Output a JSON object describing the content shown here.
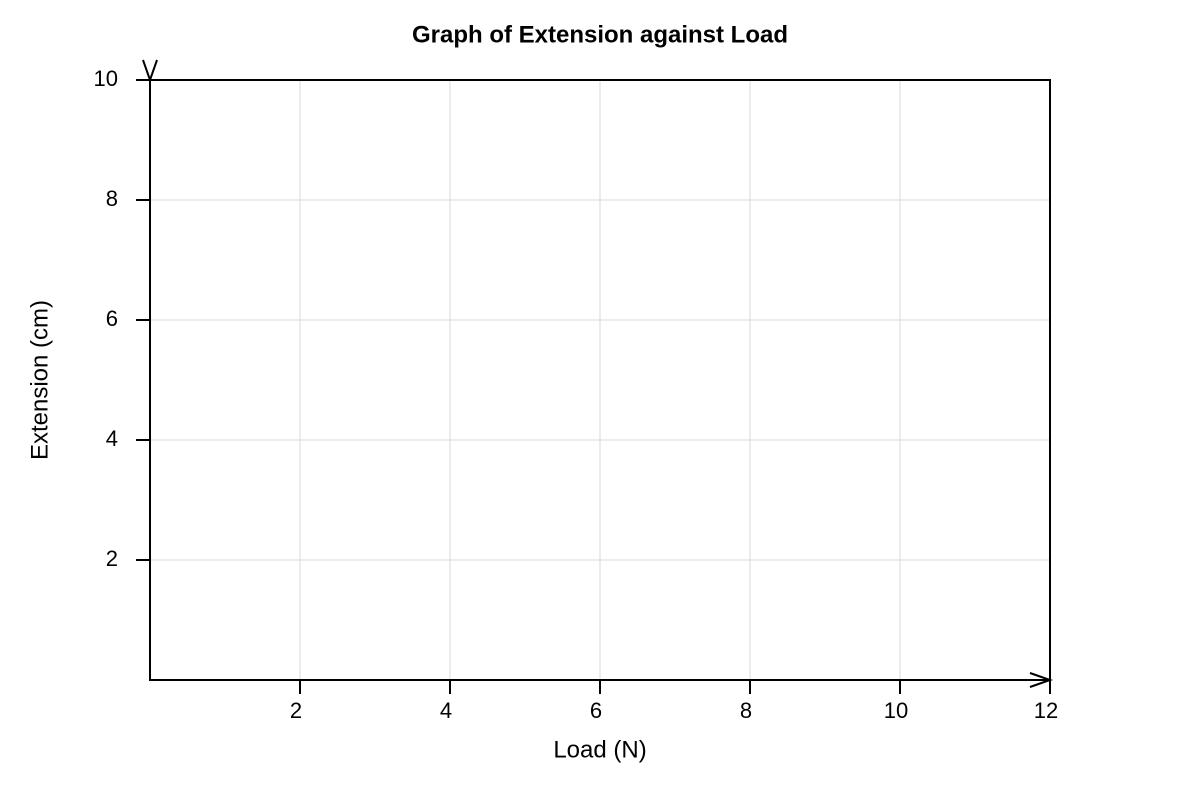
{
  "chart_data": {
    "type": "line",
    "title": "Graph of Extension against Load",
    "xlabel": "Load (N)",
    "ylabel": "Extension (cm)",
    "series": [],
    "xlim": [
      0,
      12
    ],
    "xticks": [
      2,
      4,
      6,
      8,
      10,
      12
    ],
    "ylim": [
      0,
      10
    ],
    "yticks": [
      2,
      4,
      6,
      8,
      10
    ],
    "grid": true
  }
}
